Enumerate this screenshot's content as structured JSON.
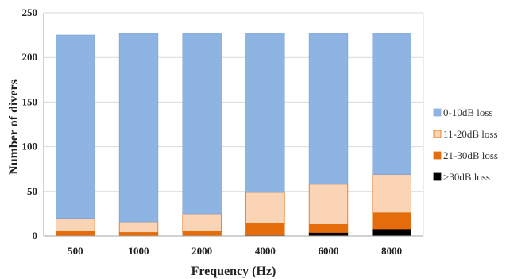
{
  "chart_data": {
    "type": "bar",
    "stacked": true,
    "categories": [
      "500",
      "1000",
      "2000",
      "4000",
      "6000",
      "8000"
    ],
    "xlabel": "Frequency (Hz)",
    "ylabel": "Number of divers",
    "ylim": [
      0,
      250
    ],
    "yticks": [
      0,
      50,
      100,
      150,
      200,
      250
    ],
    "grid": true,
    "legend_position": "right",
    "series": [
      {
        "name": ">30dB loss",
        "color": "#000000",
        "values": [
          0,
          0,
          0,
          1,
          4,
          8
        ]
      },
      {
        "name": "21-30dB loss",
        "color": "#e46c0a",
        "values": [
          5,
          4,
          5,
          13,
          9,
          18
        ]
      },
      {
        "name": "11-20dB loss",
        "color": "#fad4b4",
        "values": [
          15,
          12,
          20,
          35,
          45,
          43
        ]
      },
      {
        "name": "0-10dB loss",
        "color": "#8db4e2",
        "values": [
          205,
          211,
          202,
          178,
          169,
          158
        ]
      }
    ],
    "legend_order": [
      "0-10dB loss",
      "11-20dB loss",
      "21-30dB loss",
      ">30dB loss"
    ]
  }
}
